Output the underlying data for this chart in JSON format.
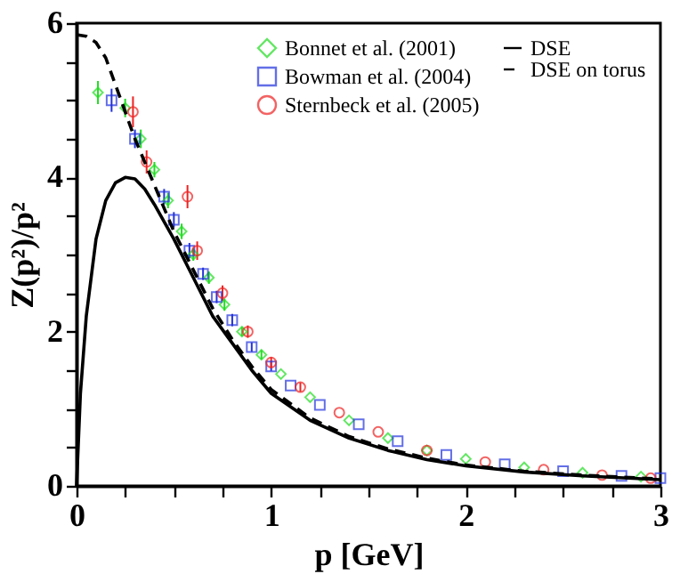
{
  "chart_data": {
    "type": "scatter",
    "xlabel": "p [GeV]",
    "ylabel": "Z(p²)/p²",
    "xlim": [
      0,
      3
    ],
    "ylim": [
      0,
      6
    ],
    "xticks": [
      0,
      {
        "value": 0.25,
        "label": null
      },
      {
        "value": 0.5,
        "label": null
      },
      {
        "value": 0.75,
        "label": null
      },
      1,
      {
        "value": 1.25,
        "label": null
      },
      {
        "value": 1.5,
        "label": null
      },
      {
        "value": 1.75,
        "label": null
      },
      2,
      {
        "value": 2.25,
        "label": null
      },
      {
        "value": 2.5,
        "label": null
      },
      {
        "value": 2.75,
        "label": null
      },
      3
    ],
    "yticks": [
      0,
      {
        "value": 0.5,
        "label": null
      },
      {
        "value": 1,
        "label": null
      },
      {
        "value": 1.5,
        "label": null
      },
      2,
      {
        "value": 2.5,
        "label": null
      },
      {
        "value": 3,
        "label": null
      },
      {
        "value": 3.5,
        "label": null
      },
      4,
      {
        "value": 4.5,
        "label": null
      },
      {
        "value": 5,
        "label": null
      },
      {
        "value": 5.5,
        "label": null
      },
      6
    ],
    "grid": false,
    "legend": "top right",
    "series": [
      {
        "name": "Bonnet et al. (2001)",
        "marker": "diamond",
        "color": "#22dd22",
        "x": [
          0.11,
          0.25,
          0.33,
          0.4,
          0.47,
          0.54,
          0.6,
          0.68,
          0.76,
          0.85,
          0.95,
          1.05,
          1.2,
          1.4,
          1.6,
          1.8,
          2.0,
          2.3,
          2.6,
          2.9
        ],
        "values": [
          5.1,
          4.9,
          4.5,
          4.1,
          3.7,
          3.3,
          3.0,
          2.7,
          2.35,
          2.0,
          1.7,
          1.45,
          1.15,
          0.85,
          0.62,
          0.46,
          0.35,
          0.24,
          0.17,
          0.12
        ],
        "errors": [
          0.15,
          0.12,
          0.12,
          0.1,
          0.1,
          0.1,
          0.08,
          0.08,
          0.08,
          0.06,
          0.06,
          null,
          null,
          null,
          null,
          null,
          null,
          null,
          null,
          null
        ]
      },
      {
        "name": "Bowman et al. (2004)",
        "marker": "square",
        "color": "#2233dd",
        "x": [
          0.18,
          0.3,
          0.45,
          0.5,
          0.58,
          0.65,
          0.72,
          0.8,
          0.9,
          1.0,
          1.1,
          1.25,
          1.45,
          1.65,
          1.9,
          2.2,
          2.5,
          2.8,
          3.0
        ],
        "values": [
          5.0,
          4.5,
          3.75,
          3.45,
          3.05,
          2.75,
          2.45,
          2.15,
          1.8,
          1.55,
          1.3,
          1.05,
          0.8,
          0.58,
          0.4,
          0.28,
          0.19,
          0.13,
          0.1
        ],
        "errors": [
          0.15,
          0.12,
          0.1,
          0.1,
          0.1,
          0.08,
          0.08,
          0.08,
          0.06,
          0.06,
          null,
          null,
          null,
          null,
          null,
          null,
          null,
          null,
          null
        ]
      },
      {
        "name": "Sternbeck et al. (2005)",
        "marker": "circle",
        "color": "#ee2222",
        "x": [
          0.29,
          0.36,
          0.57,
          0.62,
          0.75,
          0.88,
          1.0,
          1.15,
          1.35,
          1.55,
          1.8,
          2.1,
          2.4,
          2.7,
          2.95
        ],
        "values": [
          4.85,
          4.2,
          3.75,
          3.05,
          2.5,
          2.0,
          1.6,
          1.28,
          0.95,
          0.7,
          0.46,
          0.31,
          0.21,
          0.14,
          0.1
        ],
        "errors": [
          0.2,
          0.15,
          0.15,
          0.12,
          0.1,
          0.08,
          0.07,
          0.06,
          null,
          null,
          null,
          null,
          null,
          null,
          null
        ]
      },
      {
        "name": "DSE",
        "type": "line",
        "line_style": "solid",
        "color": "#000000",
        "x": [
          0,
          0.02,
          0.05,
          0.1,
          0.15,
          0.2,
          0.25,
          0.3,
          0.35,
          0.4,
          0.5,
          0.6,
          0.7,
          0.8,
          0.9,
          1.0,
          1.2,
          1.4,
          1.6,
          1.8,
          2.0,
          2.3,
          2.6,
          3.0
        ],
        "values": [
          0,
          1.2,
          2.2,
          3.2,
          3.7,
          3.93,
          4.0,
          3.98,
          3.85,
          3.65,
          3.2,
          2.7,
          2.2,
          1.85,
          1.5,
          1.2,
          0.85,
          0.62,
          0.46,
          0.34,
          0.26,
          0.18,
          0.13,
          0.08
        ]
      },
      {
        "name": "DSE on torus",
        "type": "line",
        "line_style": "dashed",
        "color": "#000000",
        "x": [
          0,
          0.05,
          0.1,
          0.15,
          0.2,
          0.25,
          0.3,
          0.4,
          0.5,
          0.6,
          0.7,
          0.8,
          0.9,
          1.0,
          1.2,
          1.4,
          1.6,
          1.8,
          2.0,
          2.3,
          2.6,
          3.0
        ],
        "values": [
          5.85,
          5.83,
          5.75,
          5.55,
          5.2,
          4.85,
          4.5,
          3.9,
          3.3,
          2.8,
          2.3,
          1.9,
          1.55,
          1.25,
          0.88,
          0.64,
          0.48,
          0.36,
          0.27,
          0.19,
          0.14,
          0.09
        ]
      }
    ]
  }
}
